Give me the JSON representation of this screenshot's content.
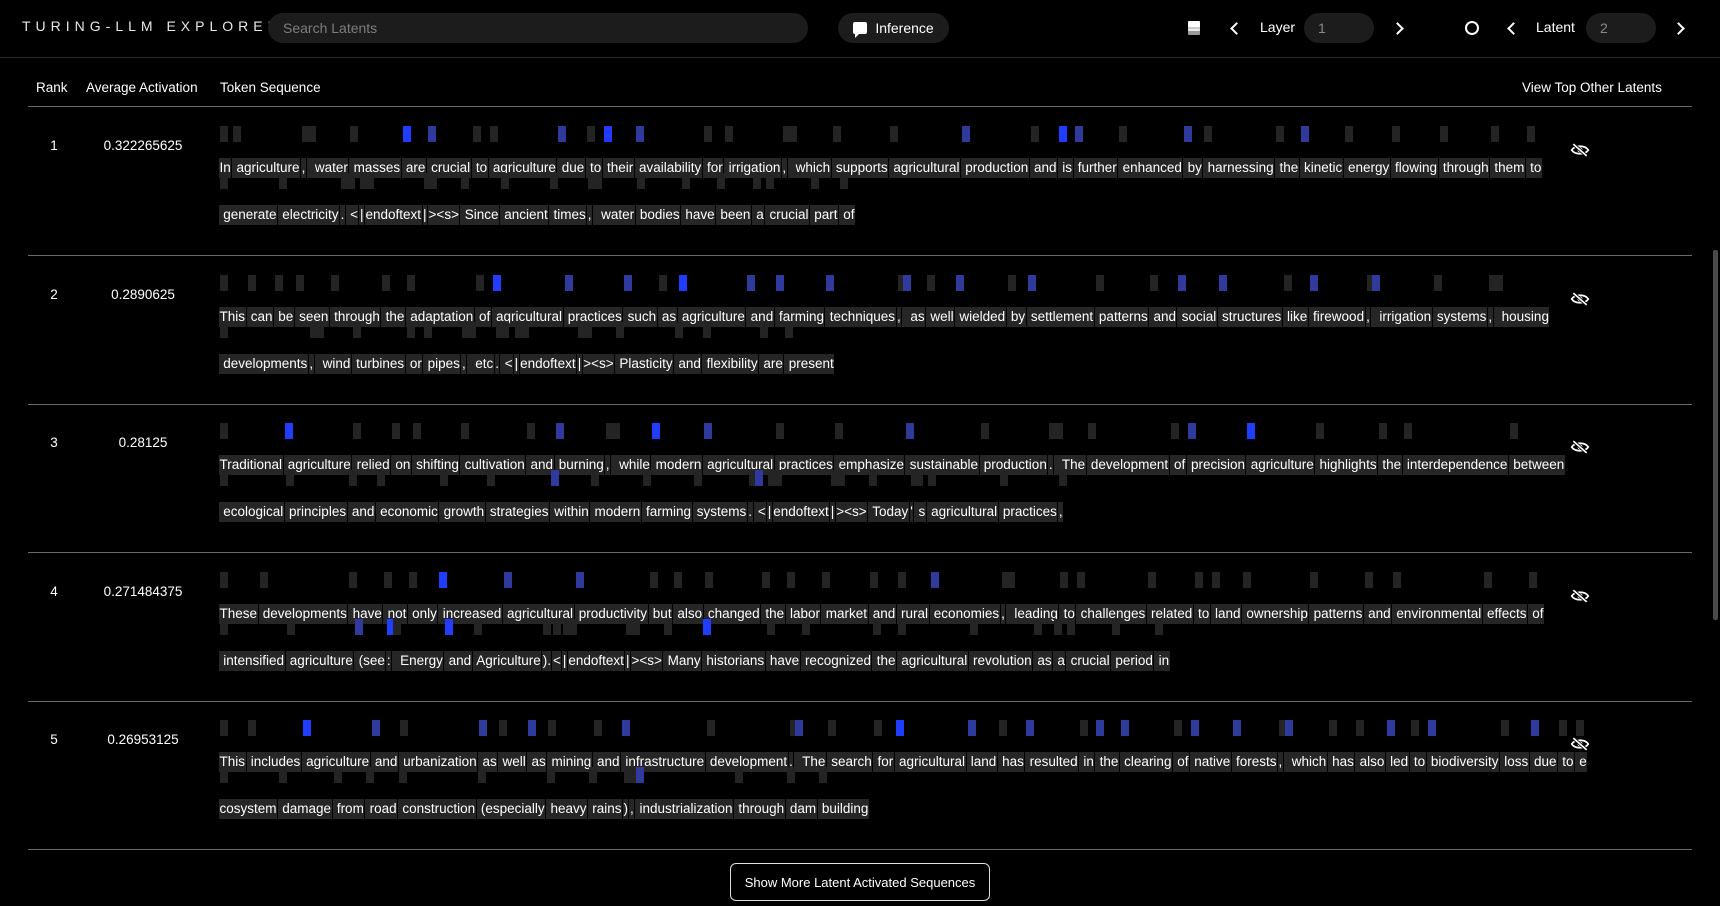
{
  "app": {
    "brand": "TURING-LLM EXPLORER"
  },
  "header": {
    "search_placeholder": "Search Latents",
    "inference_label": "Inference",
    "layer_label": "Layer",
    "layer_value": "1",
    "latent_label": "Latent",
    "latent_value": "2"
  },
  "table": {
    "columns": [
      "Rank",
      "Average Activation",
      "Token Sequence",
      "View Top Other Latents"
    ],
    "rows": [
      {
        "rank": "1",
        "avg": "0.322265625",
        "lines": [
          [
            [
              "In",
              0
            ],
            [
              " agriculture",
              0
            ],
            [
              ",",
              0
            ],
            [
              "  water",
              0
            ],
            [
              " masses",
              0
            ],
            [
              " are",
              2
            ],
            [
              " crucial",
              1
            ],
            [
              " to",
              0
            ],
            [
              " agriculture",
              0
            ],
            [
              " due",
              1
            ],
            [
              " to",
              0
            ],
            [
              " their",
              2
            ],
            [
              " availability",
              1
            ],
            [
              " for",
              0
            ],
            [
              " irrigation",
              0
            ],
            [
              ",",
              0
            ],
            [
              "  which",
              0
            ],
            [
              " supports",
              0
            ],
            [
              " agricultural",
              0
            ],
            [
              " production",
              1
            ],
            [
              " and",
              0
            ],
            [
              " is",
              2
            ],
            [
              " further",
              1
            ],
            [
              " enhanced",
              0
            ],
            [
              " by",
              1
            ],
            [
              " harnessing",
              0
            ],
            [
              " the",
              0
            ],
            [
              " kinetic",
              1
            ],
            [
              " energy",
              0
            ],
            [
              " flowing",
              0
            ],
            [
              " through",
              0
            ],
            [
              " them",
              0
            ],
            [
              " to",
              0
            ]
          ],
          [
            [
              " generate",
              0
            ],
            [
              " electricity",
              0
            ],
            [
              ".",
              0
            ],
            [
              " <",
              0
            ],
            [
              "|",
              0
            ],
            [
              "endoftext",
              0
            ],
            [
              "|",
              0
            ],
            [
              "><s>",
              0
            ],
            [
              " Since",
              0
            ],
            [
              " ancient",
              0
            ],
            [
              " times",
              0
            ],
            [
              ",",
              0
            ],
            [
              "  water",
              0
            ],
            [
              " bodies",
              0
            ],
            [
              " have",
              0
            ],
            [
              " been",
              0
            ],
            [
              " a",
              0
            ],
            [
              " crucial",
              0
            ],
            [
              " part",
              0
            ],
            [
              " of",
              0
            ]
          ]
        ]
      },
      {
        "rank": "2",
        "avg": "0.2890625",
        "lines": [
          [
            [
              "This",
              0
            ],
            [
              " can",
              0
            ],
            [
              " be",
              0
            ],
            [
              " seen",
              0
            ],
            [
              " through",
              0
            ],
            [
              " the",
              0
            ],
            [
              " adaptation",
              0
            ],
            [
              " of",
              0
            ],
            [
              " agricultural",
              2
            ],
            [
              " practices",
              1
            ],
            [
              " such",
              1
            ],
            [
              " as",
              0
            ],
            [
              " agriculture",
              2
            ],
            [
              " and",
              1
            ],
            [
              " farming",
              1
            ],
            [
              " techniques",
              1
            ],
            [
              ",",
              0
            ],
            [
              "  as",
              1
            ],
            [
              " well",
              0
            ],
            [
              " wielded",
              1
            ],
            [
              " by",
              0
            ],
            [
              " settlement",
              1
            ],
            [
              " patterns",
              0
            ],
            [
              " and",
              0
            ],
            [
              " social",
              1
            ],
            [
              " structures",
              1
            ],
            [
              " like",
              0
            ],
            [
              " firewood",
              1
            ],
            [
              ",",
              0
            ],
            [
              "  irrigation",
              1
            ],
            [
              " systems",
              0
            ],
            [
              ",",
              0
            ],
            [
              "  housing",
              0
            ]
          ],
          [
            [
              " developments",
              0
            ],
            [
              ",",
              0
            ],
            [
              "  wind",
              0
            ],
            [
              " turbines",
              0
            ],
            [
              " or",
              0
            ],
            [
              " pipes",
              0
            ],
            [
              ",",
              0
            ],
            [
              "  etc",
              0
            ],
            [
              ".",
              0
            ],
            [
              " <",
              0
            ],
            [
              "|",
              0
            ],
            [
              "endoftext",
              0
            ],
            [
              "|",
              0
            ],
            [
              "><s>",
              0
            ],
            [
              " Plasticity",
              0
            ],
            [
              " and",
              0
            ],
            [
              " flexibility",
              0
            ],
            [
              " are",
              0
            ],
            [
              " present",
              0
            ]
          ]
        ]
      },
      {
        "rank": "3",
        "avg": "0.28125",
        "lines": [
          [
            [
              "Traditional",
              0
            ],
            [
              " agriculture",
              2
            ],
            [
              " relied",
              0
            ],
            [
              " on",
              0
            ],
            [
              " shifting",
              0
            ],
            [
              " cultivation",
              0
            ],
            [
              " and",
              0
            ],
            [
              " burning",
              1
            ],
            [
              ",",
              0
            ],
            [
              "  while",
              0
            ],
            [
              " modern",
              2
            ],
            [
              " agricultural",
              1
            ],
            [
              " practices",
              0
            ],
            [
              " emphasize",
              0
            ],
            [
              " sustainable",
              1
            ],
            [
              " production",
              0
            ],
            [
              ".",
              0
            ],
            [
              "  The",
              0
            ],
            [
              " development",
              0
            ],
            [
              " of",
              0
            ],
            [
              " precision",
              1
            ],
            [
              " agriculture",
              2
            ],
            [
              " highlights",
              0
            ],
            [
              " the",
              0
            ],
            [
              " interdependence",
              0
            ],
            [
              " between",
              0
            ]
          ],
          [
            [
              " ecological",
              0
            ],
            [
              " principles",
              0
            ],
            [
              " and",
              0
            ],
            [
              " economic",
              0
            ],
            [
              " growth",
              0
            ],
            [
              " strategies",
              0
            ],
            [
              " within",
              1
            ],
            [
              " modern",
              0
            ],
            [
              " farming",
              0
            ],
            [
              " systems",
              0
            ],
            [
              ".",
              0
            ],
            [
              " <",
              1
            ],
            [
              "|",
              0
            ],
            [
              "endoftext",
              0
            ],
            [
              "|",
              0
            ],
            [
              "><s>",
              0
            ],
            [
              " Today",
              0
            ],
            [
              "'",
              0
            ],
            [
              " s",
              0
            ],
            [
              " agricultural",
              0
            ],
            [
              " practices",
              0
            ],
            [
              ",",
              0
            ]
          ]
        ]
      },
      {
        "rank": "4",
        "avg": "0.271484375",
        "lines": [
          [
            [
              "These",
              0
            ],
            [
              " developments",
              0
            ],
            [
              " have",
              0
            ],
            [
              " not",
              0
            ],
            [
              " only",
              0
            ],
            [
              " increased",
              2
            ],
            [
              " agricultural",
              1
            ],
            [
              " productivity",
              1
            ],
            [
              " but",
              0
            ],
            [
              " also",
              0
            ],
            [
              " changed",
              0
            ],
            [
              " the",
              0
            ],
            [
              " labor",
              0
            ],
            [
              " market",
              0
            ],
            [
              " and",
              0
            ],
            [
              " rural",
              0
            ],
            [
              " economies",
              1
            ],
            [
              ",",
              0
            ],
            [
              "  leading",
              0
            ],
            [
              " to",
              0
            ],
            [
              " challenges",
              0
            ],
            [
              " related",
              0
            ],
            [
              " to",
              0
            ],
            [
              " land",
              0
            ],
            [
              " ownership",
              0
            ],
            [
              " patterns",
              0
            ],
            [
              " and",
              0
            ],
            [
              " environmental",
              0
            ],
            [
              " effects",
              0
            ],
            [
              " of",
              0
            ]
          ],
          [
            [
              " intensified",
              0
            ],
            [
              " agriculture",
              0
            ],
            [
              " (see",
              1
            ],
            [
              ":",
              2
            ],
            [
              "  Energy",
              0
            ],
            [
              " and",
              2
            ],
            [
              " Agriculture",
              0
            ],
            [
              ").",
              0
            ],
            [
              "<",
              0
            ],
            [
              "|",
              0
            ],
            [
              "endoftext",
              0
            ],
            [
              "|",
              0
            ],
            [
              "><s>",
              0
            ],
            [
              " Many",
              0
            ],
            [
              " historians",
              2
            ],
            [
              " have",
              0
            ],
            [
              " recognized",
              0
            ],
            [
              " the",
              0
            ],
            [
              " agricultural",
              0
            ],
            [
              " revolution",
              0
            ],
            [
              " as",
              0
            ],
            [
              " a",
              0
            ],
            [
              " crucial",
              0
            ],
            [
              " period",
              0
            ],
            [
              " in",
              0
            ]
          ]
        ]
      },
      {
        "rank": "5",
        "avg": "0.26953125",
        "lines": [
          [
            [
              "This",
              0
            ],
            [
              " includes",
              0
            ],
            [
              " agriculture",
              2
            ],
            [
              " and",
              1
            ],
            [
              " urbanization",
              0
            ],
            [
              " as",
              1
            ],
            [
              " well",
              0
            ],
            [
              " as",
              1
            ],
            [
              " mining",
              0
            ],
            [
              " and",
              0
            ],
            [
              " infrastructure",
              1
            ],
            [
              " development",
              0
            ],
            [
              ".",
              0
            ],
            [
              "  The",
              1
            ],
            [
              " search",
              0
            ],
            [
              " for",
              0
            ],
            [
              " agricultural",
              2
            ],
            [
              " land",
              1
            ],
            [
              " has",
              0
            ],
            [
              " resulted",
              1
            ],
            [
              " in",
              0
            ],
            [
              " the",
              1
            ],
            [
              " clearing",
              1
            ],
            [
              " of",
              0
            ],
            [
              " native",
              1
            ],
            [
              " forests",
              1
            ],
            [
              ",",
              0
            ],
            [
              "  which",
              1
            ],
            [
              " has",
              0
            ],
            [
              " also",
              0
            ],
            [
              " led",
              1
            ],
            [
              " to",
              0
            ],
            [
              " biodiversity",
              1
            ],
            [
              " loss",
              0
            ],
            [
              " due",
              1
            ],
            [
              " to",
              0
            ],
            [
              " e",
              0
            ]
          ],
          [
            [
              "cosystem",
              0
            ],
            [
              " damage",
              0
            ],
            [
              " from",
              0
            ],
            [
              " road",
              0
            ],
            [
              " construction",
              0
            ],
            [
              " (especially",
              0
            ],
            [
              " heavy",
              0
            ],
            [
              " rains",
              0
            ],
            [
              ")",
              0
            ],
            [
              ",",
              0
            ],
            [
              " industrialization",
              1
            ],
            [
              " through",
              0
            ],
            [
              " dam",
              0
            ],
            [
              " building",
              0
            ]
          ]
        ]
      }
    ],
    "show_more_label": "Show More Latent Activated Sequences"
  },
  "icons": {
    "eye": "eye-slash-icon",
    "layers": "layers-icon",
    "circle": "circle-icon",
    "chat": "chat-icon",
    "chevrons": "chevron-icon"
  },
  "colors": {
    "background": "#000000",
    "token_bg": "#262626",
    "activation_strong": "#1f3cff",
    "activation_weak": "#2f3a9c"
  }
}
